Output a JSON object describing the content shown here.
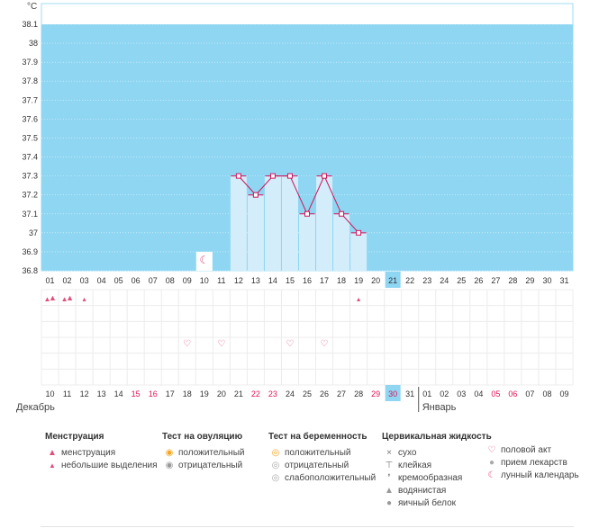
{
  "chart_data": {
    "type": "line",
    "unit_label": "°C",
    "y_ticks": [
      "38.1",
      "38",
      "37.9",
      "37.8",
      "37.7",
      "37.6",
      "37.5",
      "37.4",
      "37.3",
      "37.2",
      "37.1",
      "37",
      "36.9",
      "36.8"
    ],
    "ylim": [
      36.8,
      38.1
    ],
    "cycle_days": [
      "01",
      "02",
      "03",
      "04",
      "05",
      "06",
      "07",
      "08",
      "09",
      "10",
      "11",
      "12",
      "13",
      "14",
      "15",
      "16",
      "17",
      "18",
      "19",
      "20",
      "21",
      "22",
      "23",
      "24",
      "25",
      "26",
      "27",
      "28",
      "29",
      "30",
      "31"
    ],
    "current_day": "21",
    "series": [
      {
        "days": [
          12,
          13,
          14,
          15,
          16,
          17,
          18,
          19
        ],
        "values": [
          37.3,
          37.2,
          37.3,
          37.3,
          37.1,
          37.3,
          37.1,
          37.0
        ]
      }
    ],
    "calendar_dates": [
      "10",
      "11",
      "12",
      "13",
      "14",
      "15",
      "16",
      "17",
      "18",
      "19",
      "20",
      "21",
      "22",
      "23",
      "24",
      "25",
      "26",
      "27",
      "28",
      "29",
      "30",
      "31",
      "01",
      "02",
      "03",
      "04",
      "05",
      "06",
      "07",
      "08",
      "09"
    ],
    "weekend_dates_idx": [
      5,
      6,
      12,
      13,
      19,
      20,
      26,
      27
    ],
    "today_date_idx": 20,
    "month_start": "Декабрь",
    "month_next": "Январь",
    "month_break_idx": 22,
    "moon_day": 10,
    "menstruation": [
      {
        "day": 1,
        "icon": "drops-icon"
      },
      {
        "day": 2,
        "icon": "drops-icon"
      },
      {
        "day": 3,
        "icon": "drop-icon"
      },
      {
        "day": 19,
        "icon": "drop-icon"
      }
    ],
    "intercourse_days": [
      9,
      11,
      15,
      17
    ]
  },
  "legend": {
    "menstruation": {
      "title": "Менструация",
      "items": [
        {
          "icon": "drops-icon",
          "color": "#e0507a",
          "label": "менструация"
        },
        {
          "icon": "drop-icon",
          "color": "#e0507a",
          "label": "небольшие выделения"
        }
      ]
    },
    "ovulation": {
      "title": "Тест на овуляцию",
      "items": [
        {
          "icon": "positive-icon",
          "color": "#f5a623",
          "label": "положительный"
        },
        {
          "icon": "negative-icon",
          "color": "#999999",
          "label": "отрицательный"
        }
      ]
    },
    "pregnancy": {
      "title": "Тест на беременность",
      "items": [
        {
          "icon": "positive-icon",
          "color": "#f5a623",
          "label": "положительный"
        },
        {
          "icon": "negative-icon",
          "color": "#999999",
          "label": "отрицательный"
        },
        {
          "icon": "weak-positive-icon",
          "color": "#999999",
          "label": "слабоположительный"
        }
      ]
    },
    "cervical": {
      "title": "Цервикальная жидкость",
      "items": [
        {
          "icon": "dry-icon",
          "label": "сухо"
        },
        {
          "icon": "sticky-icon",
          "label": "клейкая"
        },
        {
          "icon": "creamy-icon",
          "label": "кремообразная"
        },
        {
          "icon": "watery-icon",
          "label": "водянистая"
        },
        {
          "icon": "egg-white-icon",
          "label": "яичный белок"
        }
      ]
    },
    "other": {
      "items": [
        {
          "icon": "heart-icon",
          "label": "половой акт"
        },
        {
          "icon": "pill-icon",
          "label": "прием лекарств"
        },
        {
          "icon": "moon-icon",
          "label": "лунный календарь"
        }
      ]
    }
  },
  "colors": {
    "sky": "#8fd6f2",
    "column": "#d3edfb",
    "line": "#d0145a",
    "weekend": "#e0145a",
    "today": "#8fd6f2"
  }
}
